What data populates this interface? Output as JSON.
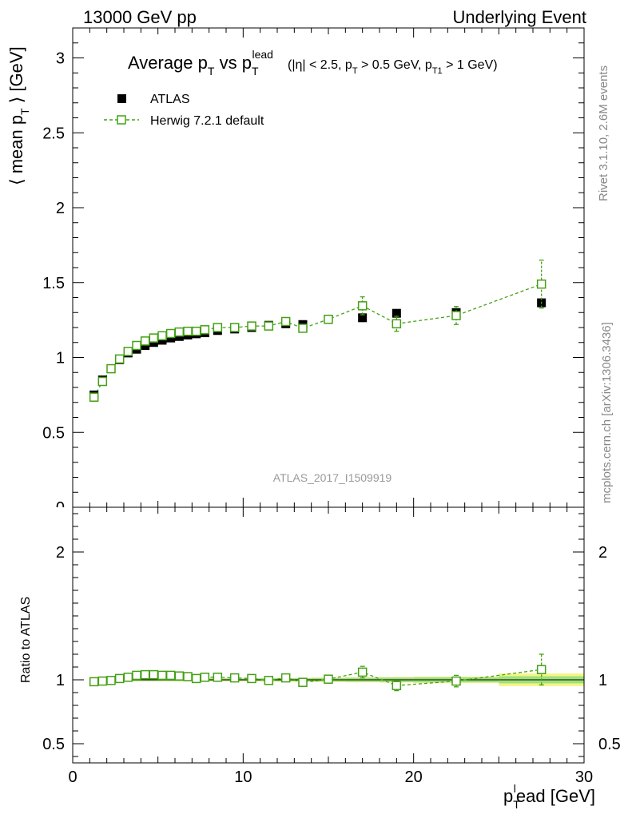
{
  "header": {
    "energy_label": "13000 GeV pp",
    "process_label": "Underlying Event"
  },
  "side_labels": {
    "rivet": "Rivet 3.1.10,  2.6M events",
    "mcplots": "mcplots.cern.ch [arXiv:1306.3436]"
  },
  "analysis_id": "ATLAS_2017_I1509919",
  "colors": {
    "data": "#000000",
    "mc": "#44a014",
    "band_inner": "#9ee07a",
    "band_outer": "#f5f58a"
  },
  "chart_data": [
    {
      "type": "scatter",
      "panel": "main",
      "title": {
        "text": "Average p",
        "sub1": "T",
        "mid": " vs p",
        "sub2": "T",
        "sup2": "lead",
        "cuts": [
          {
            "t": "(|η| < 2.5, p"
          },
          {
            "t": "T",
            "sub": true
          },
          {
            "t": " > 0.5 GeV, p"
          },
          {
            "t": "T1",
            "sub": true
          },
          {
            "t": " > 1 GeV)"
          }
        ]
      },
      "ylabel": {
        "pre": "⟨ mean p",
        "sub": "T",
        "post": " ⟩ [GeV]"
      },
      "xlim": [
        0,
        30
      ],
      "ylim": [
        0,
        3.2
      ],
      "y_ticks": [
        {
          "v": 0.5,
          "label": "0.5"
        },
        {
          "v": 1,
          "label": "1"
        },
        {
          "v": 1.5,
          "label": "1.5"
        },
        {
          "v": 2,
          "label": "2"
        },
        {
          "v": 2.5,
          "label": "2.5"
        },
        {
          "v": 3,
          "label": "3"
        }
      ],
      "legend_position": "top-left",
      "series": [
        {
          "name": "ATLAS",
          "marker": "filled-square",
          "x": [
            1.25,
            1.75,
            2.25,
            2.75,
            3.25,
            3.75,
            4.25,
            4.75,
            5.25,
            5.75,
            6.25,
            6.75,
            7.25,
            7.75,
            8.5,
            9.5,
            10.5,
            11.5,
            12.5,
            13.5,
            15.0,
            17.0,
            19.0,
            22.5,
            27.5
          ],
          "y": [
            0.75,
            0.85,
            0.925,
            0.985,
            1.03,
            1.055,
            1.08,
            1.1,
            1.115,
            1.13,
            1.14,
            1.15,
            1.158,
            1.165,
            1.18,
            1.19,
            1.2,
            1.215,
            1.225,
            1.22,
            1.255,
            1.265,
            1.295,
            1.3,
            1.365
          ],
          "yerr": [
            0.01,
            0.01,
            0.01,
            0.01,
            0.01,
            0.01,
            0.01,
            0.01,
            0.01,
            0.01,
            0.01,
            0.01,
            0.01,
            0.01,
            0.01,
            0.01,
            0.01,
            0.012,
            0.012,
            0.012,
            0.015,
            0.018,
            0.02,
            0.025,
            0.03
          ]
        },
        {
          "name": "Herwig 7.2.1 default",
          "marker": "open-square",
          "line": "dashed",
          "x": [
            1.25,
            1.75,
            2.25,
            2.75,
            3.25,
            3.75,
            4.25,
            4.75,
            5.25,
            5.75,
            6.25,
            6.75,
            7.25,
            7.75,
            8.5,
            9.5,
            10.5,
            11.5,
            12.5,
            13.5,
            15.0,
            17.0,
            19.0,
            22.5,
            27.5
          ],
          "y": [
            0.735,
            0.84,
            0.925,
            0.99,
            1.04,
            1.08,
            1.11,
            1.13,
            1.145,
            1.16,
            1.17,
            1.175,
            1.175,
            1.185,
            1.2,
            1.2,
            1.21,
            1.21,
            1.24,
            1.195,
            1.255,
            1.345,
            1.225,
            1.28,
            1.49
          ],
          "yerr": [
            0.01,
            0.01,
            0.01,
            0.01,
            0.01,
            0.01,
            0.01,
            0.01,
            0.01,
            0.01,
            0.01,
            0.01,
            0.01,
            0.01,
            0.01,
            0.01,
            0.015,
            0.015,
            0.02,
            0.02,
            0.025,
            0.06,
            0.05,
            0.06,
            0.16
          ]
        }
      ]
    },
    {
      "type": "scatter",
      "panel": "ratio",
      "ylabel": "Ratio to ATLAS",
      "xlabel": {
        "pre": "p",
        "sub": "T",
        "sup": "l",
        "post": "ead [GeV]"
      },
      "xlim": [
        0,
        30
      ],
      "ylim": [
        0.35,
        2.35
      ],
      "x_ticks": [
        {
          "v": 0,
          "label": "0"
        },
        {
          "v": 10,
          "label": "10"
        },
        {
          "v": 20,
          "label": "20"
        },
        {
          "v": 30,
          "label": "30"
        }
      ],
      "y_ticks": [
        {
          "v": 0.5,
          "label": "0.5"
        },
        {
          "v": 1,
          "label": "1"
        },
        {
          "v": 2,
          "label": "2"
        }
      ],
      "reference": 1.0,
      "uncertainty_band": {
        "x": [
          1.0,
          1.5,
          2.0,
          2.5,
          3.0,
          3.5,
          4.0,
          4.5,
          5.0,
          5.5,
          6.0,
          6.5,
          7.0,
          7.5,
          8.0,
          9.0,
          10.0,
          11.0,
          12.0,
          13.0,
          14.0,
          16.0,
          18.0,
          20.0,
          25.0,
          30.0
        ],
        "inner": [
          0.01,
          0.01,
          0.01,
          0.01,
          0.01,
          0.01,
          0.01,
          0.01,
          0.01,
          0.01,
          0.01,
          0.01,
          0.01,
          0.01,
          0.01,
          0.01,
          0.01,
          0.012,
          0.012,
          0.012,
          0.014,
          0.016,
          0.018,
          0.02,
          0.028
        ],
        "outer": [
          0.012,
          0.012,
          0.012,
          0.012,
          0.012,
          0.012,
          0.012,
          0.012,
          0.012,
          0.012,
          0.012,
          0.012,
          0.012,
          0.012,
          0.012,
          0.012,
          0.012,
          0.014,
          0.015,
          0.016,
          0.018,
          0.02,
          0.022,
          0.025,
          0.05
        ]
      },
      "series": [
        {
          "name": "Herwig 7.2.1 default",
          "marker": "open-square",
          "line": "dashed",
          "x": [
            1.25,
            1.75,
            2.25,
            2.75,
            3.25,
            3.75,
            4.25,
            4.75,
            5.25,
            5.75,
            6.25,
            6.75,
            7.25,
            7.75,
            8.5,
            9.5,
            10.5,
            11.5,
            12.5,
            13.5,
            15.0,
            17.0,
            19.0,
            22.5,
            27.5
          ],
          "y": [
            0.985,
            0.99,
            0.995,
            1.01,
            1.02,
            1.035,
            1.04,
            1.04,
            1.035,
            1.035,
            1.03,
            1.025,
            1.01,
            1.02,
            1.02,
            1.015,
            1.01,
            0.995,
            1.015,
            0.98,
            1.005,
            1.06,
            0.955,
            0.99,
            1.08
          ],
          "yerr": [
            0.01,
            0.01,
            0.01,
            0.01,
            0.01,
            0.01,
            0.01,
            0.01,
            0.01,
            0.01,
            0.01,
            0.01,
            0.01,
            0.01,
            0.01,
            0.01,
            0.012,
            0.012,
            0.016,
            0.016,
            0.02,
            0.045,
            0.04,
            0.045,
            0.12
          ]
        }
      ]
    }
  ]
}
